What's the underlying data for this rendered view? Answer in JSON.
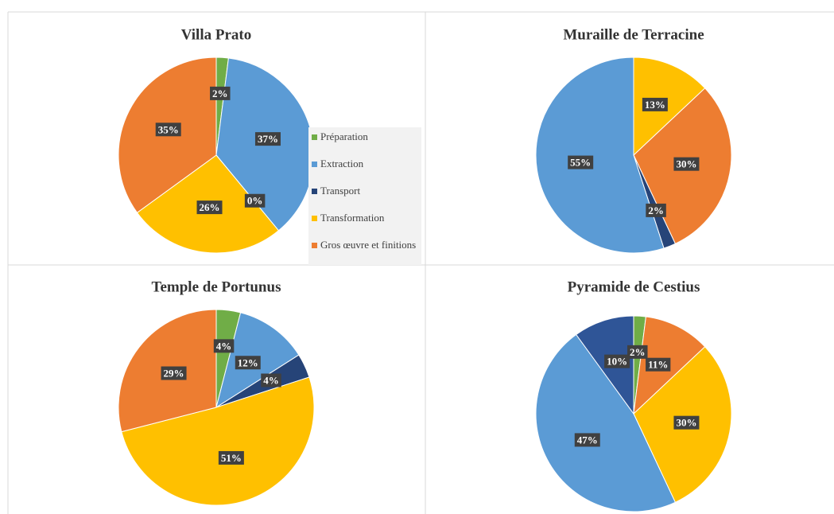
{
  "chart_data": [
    {
      "type": "pie",
      "title": "Villa Prato",
      "categories": [
        "Préparation",
        "Extraction",
        "Transport",
        "Transformation",
        "Gros œuvre et finitions"
      ],
      "values": [
        2,
        37,
        0,
        26,
        35
      ],
      "value_labels": [
        "2%",
        "37%",
        "0%",
        "26%",
        "35%"
      ],
      "colors": [
        "#70ad47",
        "#5b9bd5",
        "#264478",
        "#ffc000",
        "#ed7d31"
      ],
      "legend": "right"
    },
    {
      "type": "pie",
      "title": "Muraille de Terracine",
      "categories": [
        "Transformation",
        "Gros œuvre et finitions",
        "Transport",
        "Extraction"
      ],
      "values": [
        13,
        30,
        2,
        55
      ],
      "value_labels": [
        "13%",
        "30%",
        "2%",
        "55%"
      ],
      "colors": [
        "#ffc000",
        "#ed7d31",
        "#264478",
        "#5b9bd5"
      ]
    },
    {
      "type": "pie",
      "title": "Temple de Portunus",
      "categories": [
        "Préparation",
        "Extraction",
        "Transport",
        "Transformation",
        "Gros œuvre et finitions"
      ],
      "values": [
        4,
        12,
        4,
        51,
        29
      ],
      "value_labels": [
        "4%",
        "12%",
        "4%",
        "51%",
        "29%"
      ],
      "colors": [
        "#70ad47",
        "#5b9bd5",
        "#264478",
        "#ffc000",
        "#ed7d31"
      ]
    },
    {
      "type": "pie",
      "title": "Pyramide de Cestius",
      "categories": [
        "Préparation",
        "Gros œuvre et finitions",
        "Transformation",
        "Extraction",
        "Transport"
      ],
      "values": [
        2,
        11,
        30,
        47,
        10
      ],
      "value_labels": [
        "2%",
        "11%",
        "30%",
        "47%",
        "10%"
      ],
      "colors": [
        "#70ad47",
        "#ed7d31",
        "#ffc000",
        "#5b9bd5",
        "#2f5597"
      ]
    }
  ]
}
